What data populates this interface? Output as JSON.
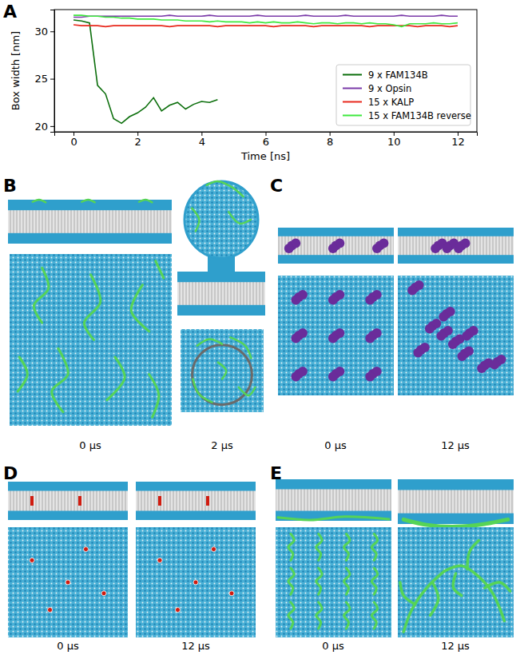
{
  "chart_data": {
    "type": "line",
    "xlabel": "Time [ns]",
    "ylabel": "Box width [nm]",
    "x": [
      0,
      0.25,
      0.5,
      0.75,
      1,
      1.25,
      1.5,
      1.75,
      2,
      2.25,
      2.5,
      2.75,
      3,
      3.25,
      3.5,
      3.75,
      4,
      4.25,
      4.5,
      4.75,
      5,
      5.25,
      5.5,
      5.75,
      6,
      6.25,
      6.5,
      6.75,
      7,
      7.25,
      7.5,
      7.75,
      8,
      8.25,
      8.5,
      8.75,
      9,
      9.25,
      9.5,
      9.75,
      10,
      10.25,
      10.5,
      10.75,
      11,
      11.25,
      11.5,
      11.75,
      12
    ],
    "series": [
      {
        "name": "9 x FAM134B",
        "color": "#0b6e0b",
        "values": [
          31.2,
          31.1,
          30.9,
          24.3,
          23.4,
          20.8,
          20.3,
          21.0,
          21.4,
          22.0,
          23.0,
          21.6,
          22.2,
          22.5,
          21.8,
          22.3,
          22.6,
          22.5,
          22.8,
          null,
          null,
          null,
          null,
          null,
          null,
          null,
          null,
          null,
          null,
          null,
          null,
          null,
          null,
          null,
          null,
          null,
          null,
          null,
          null,
          null,
          null,
          null,
          null,
          null,
          null,
          null,
          null,
          null,
          null
        ]
      },
      {
        "name": "9 x Opsin",
        "color": "#7a3aa8",
        "values": [
          31.5,
          31.5,
          31.6,
          31.6,
          31.6,
          31.6,
          31.6,
          31.6,
          31.6,
          31.6,
          31.6,
          31.6,
          31.7,
          31.6,
          31.6,
          31.6,
          31.6,
          31.7,
          31.6,
          31.6,
          31.6,
          31.6,
          31.6,
          31.7,
          31.6,
          31.6,
          31.6,
          31.6,
          31.6,
          31.7,
          31.6,
          31.6,
          31.6,
          31.6,
          31.7,
          31.6,
          31.6,
          31.6,
          31.6,
          31.6,
          31.6,
          31.7,
          31.6,
          31.6,
          31.6,
          31.6,
          31.7,
          31.6,
          31.6
        ]
      },
      {
        "name": "15 x KALP",
        "color": "#e8281c",
        "values": [
          30.7,
          30.6,
          30.6,
          30.6,
          30.5,
          30.6,
          30.6,
          30.6,
          30.6,
          30.6,
          30.6,
          30.6,
          30.5,
          30.6,
          30.6,
          30.6,
          30.6,
          30.6,
          30.5,
          30.6,
          30.6,
          30.6,
          30.6,
          30.6,
          30.6,
          30.5,
          30.6,
          30.6,
          30.6,
          30.6,
          30.5,
          30.6,
          30.6,
          30.6,
          30.6,
          30.6,
          30.6,
          30.5,
          30.6,
          30.6,
          30.6,
          30.6,
          30.6,
          30.5,
          30.6,
          30.6,
          30.6,
          30.5,
          30.6
        ]
      },
      {
        "name": "15 x FAM134B reverse",
        "color": "#3ee83e",
        "values": [
          31.7,
          31.7,
          31.6,
          31.6,
          31.5,
          31.5,
          31.4,
          31.4,
          31.3,
          31.3,
          31.3,
          31.2,
          31.2,
          31.2,
          31.1,
          31.1,
          31.1,
          31.0,
          31.1,
          31.0,
          31.0,
          31.0,
          30.9,
          31.0,
          30.9,
          31.0,
          30.9,
          30.9,
          31.0,
          30.9,
          30.8,
          30.9,
          30.9,
          30.8,
          30.9,
          30.9,
          30.8,
          30.9,
          30.8,
          30.8,
          30.7,
          30.5,
          30.8,
          30.8,
          30.8,
          30.9,
          30.8,
          30.8,
          30.9
        ]
      }
    ],
    "xlim": [
      -0.6,
      12.6
    ],
    "xticks": [
      0,
      2,
      4,
      6,
      8,
      10,
      12
    ],
    "ylim": [
      19.4,
      32.3
    ],
    "yticks": [
      20,
      25,
      30
    ],
    "grid": false,
    "legend": "lower right"
  },
  "figure": {
    "chart_label": "A",
    "panels": [
      {
        "label": "B",
        "times": [
          "0 μs",
          "2 μs"
        ]
      },
      {
        "label": "C",
        "times": [
          "0 μs",
          "12 μs"
        ]
      },
      {
        "label": "D",
        "times": [
          "0 μs",
          "12 μs"
        ]
      },
      {
        "label": "E",
        "times": [
          "0 μs",
          "12 μs"
        ]
      }
    ]
  }
}
